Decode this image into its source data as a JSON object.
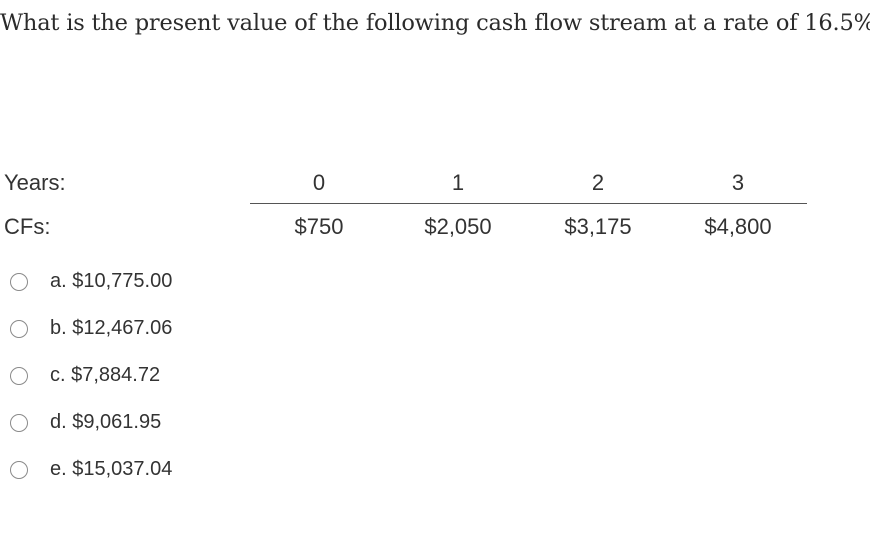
{
  "question": {
    "text": "What is the present value of the following cash flow stream at a rate of 16.5%?"
  },
  "table": {
    "years_label": "Years:",
    "cfs_label": "CFs:",
    "years": [
      "0",
      "1",
      "2",
      "3"
    ],
    "cash_flows": [
      "$750",
      "$2,050",
      "$3,175",
      "$4,800"
    ]
  },
  "options": [
    {
      "label": "a. $10,775.00",
      "selected": false
    },
    {
      "label": "b. $12,467.06",
      "selected": false
    },
    {
      "label": "c. $7,884.72",
      "selected": false
    },
    {
      "label": "d. $9,061.95",
      "selected": false
    },
    {
      "label": "e. $15,037.04",
      "selected": false
    }
  ],
  "icons": {
    "radio": "radio-button-unchecked-icon"
  }
}
